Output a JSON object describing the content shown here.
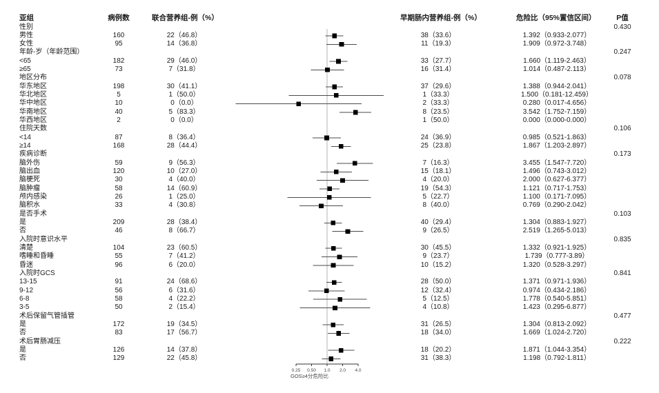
{
  "columns": {
    "subgroup": "亚组",
    "n": "病例数",
    "combined": "联合营养组-例（%）",
    "early": "早期肠内营养组-例（%）",
    "hr": "危险比（95%置信区间）",
    "p": "P值"
  },
  "colors": {
    "text": "#1a1a1a",
    "marker": "#000000",
    "ci_line": "#4a4a4a",
    "ref_line": "#b5b5b5",
    "axis": "#333333",
    "tick_text": "#444444"
  },
  "chart_data": {
    "type": "forest",
    "xscale": "log2",
    "axis": {
      "tick_values": [
        0.25,
        0.5,
        1.0,
        2.0,
        4.0
      ],
      "tick_labels": [
        "0.25",
        "0.50",
        "1.0",
        "2.0",
        "4.0"
      ],
      "label": "GOS≥4分危险比",
      "ref": 1.0
    },
    "rows": [
      {
        "type": "group",
        "label": "性别",
        "p": "0.430"
      },
      {
        "type": "item",
        "label": "男性",
        "n": "160",
        "combined": "22（46.8）",
        "early": "38（33.6）",
        "hr_label": "1.392（0.933-2.077）",
        "hr": 1.392,
        "ci": [
          0.933,
          2.077
        ]
      },
      {
        "type": "item",
        "label": "女性",
        "n": "95",
        "combined": "14（36.8）",
        "early": "11（19.3）",
        "hr_label": "1.909（0.972-3.748）",
        "hr": 1.909,
        "ci": [
          0.972,
          3.748
        ]
      },
      {
        "type": "group",
        "label": "年龄-岁（年龄范围）",
        "p": "0.247"
      },
      {
        "type": "item",
        "label": "<65",
        "n": "182",
        "combined": "29（46.0）",
        "early": "33（27.7）",
        "hr_label": "1.660（1.119-2.463）",
        "hr": 1.66,
        "ci": [
          1.119,
          2.463
        ]
      },
      {
        "type": "item",
        "label": "≥65",
        "n": "73",
        "combined": "7（31.8）",
        "early": "16（31.4）",
        "hr_label": "1.014（0.487-2.113）",
        "hr": 1.014,
        "ci": [
          0.487,
          2.113
        ]
      },
      {
        "type": "group",
        "label": "地区分布",
        "p": "0.078"
      },
      {
        "type": "item",
        "label": "华东地区",
        "n": "198",
        "combined": "30（41.1）",
        "early": "37（29.6）",
        "hr_label": "1.388（0.944-2.041）",
        "hr": 1.388,
        "ci": [
          0.944,
          2.041
        ]
      },
      {
        "type": "item",
        "label": "华北地区",
        "n": "5",
        "combined": "1（50.0）",
        "early": "1（33.3）",
        "hr_label": "1.500（0.181-12.459）",
        "hr": 1.5,
        "ci": [
          0.181,
          12.459
        ]
      },
      {
        "type": "item",
        "label": "华中地区",
        "n": "10",
        "combined": "0（0.0）",
        "early": "2（33.3）",
        "hr_label": "0.280（0.017-4.656）",
        "hr": 0.28,
        "ci": [
          0.017,
          4.656
        ]
      },
      {
        "type": "item",
        "label": "华南地区",
        "n": "40",
        "combined": "5（83.3）",
        "early": "8（23.5）",
        "hr_label": "3.542（1.752-7.159）",
        "hr": 3.542,
        "ci": [
          1.752,
          7.159
        ]
      },
      {
        "type": "item",
        "label": "华西地区",
        "n": "2",
        "combined": "0（0.0）",
        "early": "1（50.0）",
        "hr_label": "0.000（0.000-0.000）",
        "hr": 0,
        "ci": [
          0,
          0
        ]
      },
      {
        "type": "group",
        "label": "住院天数",
        "p": "0.106"
      },
      {
        "type": "item",
        "label": "<14",
        "n": "87",
        "combined": "8（36.4）",
        "early": "24（36.9）",
        "hr_label": "0.985（0.521-1.863）",
        "hr": 0.985,
        "ci": [
          0.521,
          1.863
        ]
      },
      {
        "type": "item",
        "label": "≥14",
        "n": "168",
        "combined": "28（44.4）",
        "early": "25（23.8）",
        "hr_label": "1.867（1.203-2.897）",
        "hr": 1.867,
        "ci": [
          1.203,
          2.897
        ]
      },
      {
        "type": "group",
        "label": "疾病诊断",
        "p": "0.173"
      },
      {
        "type": "item",
        "label": "脑外伤",
        "n": "59",
        "combined": "9（56.3）",
        "early": "7（16.3）",
        "hr_label": "3.455（1.547-7.720）",
        "hr": 3.455,
        "ci": [
          1.547,
          7.72
        ]
      },
      {
        "type": "item",
        "label": "脑出血",
        "n": "120",
        "combined": "10（27.0）",
        "early": "15（18.1）",
        "hr_label": "1.496（0.743-3.012）",
        "hr": 1.496,
        "ci": [
          0.743,
          3.012
        ]
      },
      {
        "type": "item",
        "label": "脑梗死",
        "n": "30",
        "combined": "4（40.0）",
        "early": "4（20.0）",
        "hr_label": "2.000（0.627-6.377）",
        "hr": 2.0,
        "ci": [
          0.627,
          6.377
        ]
      },
      {
        "type": "item",
        "label": "脑肿瘤",
        "n": "58",
        "combined": "14（60.9）",
        "early": "19（54.3）",
        "hr_label": "1.121（0.717-1.753）",
        "hr": 1.121,
        "ci": [
          0.717,
          1.753
        ]
      },
      {
        "type": "item",
        "label": "颅内感染",
        "n": "26",
        "combined": "1（25.0）",
        "early": "5（22.7）",
        "hr_label": "1.100（0.171-7.095）",
        "hr": 1.1,
        "ci": [
          0.171,
          7.095
        ]
      },
      {
        "type": "item",
        "label": "脑积水",
        "n": "33",
        "combined": "4（30.8）",
        "early": "8（40.0）",
        "hr_label": "0.769（0.290-2.042）",
        "hr": 0.769,
        "ci": [
          0.29,
          2.042
        ]
      },
      {
        "type": "group",
        "label": "是否手术",
        "p": "0.103"
      },
      {
        "type": "item",
        "label": "是",
        "n": "209",
        "combined": "28（38.4）",
        "early": "40（29.4）",
        "hr_label": "1.304（0.883-1.927）",
        "hr": 1.304,
        "ci": [
          0.883,
          1.927
        ]
      },
      {
        "type": "item",
        "label": "否",
        "n": "46",
        "combined": "8（66.7）",
        "early": "9（26.5）",
        "hr_label": "2.519（1.265-5.013）",
        "hr": 2.519,
        "ci": [
          1.265,
          5.013
        ]
      },
      {
        "type": "group",
        "label": "入院时意识水平",
        "p": "0.835"
      },
      {
        "type": "item",
        "label": "清楚",
        "n": "104",
        "combined": "23（60.5）",
        "early": "30（45.5）",
        "hr_label": "1.332（0.921-1.925）",
        "hr": 1.332,
        "ci": [
          0.921,
          1.925
        ]
      },
      {
        "type": "item",
        "label": "嗜睡和昏睡",
        "n": "55",
        "combined": "7（41.2）",
        "early": "9（23.7）",
        "hr_label": "1.739（0.777-3.89）",
        "hr": 1.739,
        "ci": [
          0.777,
          3.89
        ]
      },
      {
        "type": "item",
        "label": "昏迷",
        "n": "96",
        "combined": "6（20.0）",
        "early": "10（15.2）",
        "hr_label": "1.320（0.528-3.297）",
        "hr": 1.32,
        "ci": [
          0.528,
          3.297
        ]
      },
      {
        "type": "group",
        "label": "入院时GCS",
        "p": "0.841"
      },
      {
        "type": "item",
        "label": "13-15",
        "n": "91",
        "combined": "24（68.6）",
        "early": "28（50.0）",
        "hr_label": "1.371（0.971-1.936）",
        "hr": 1.371,
        "ci": [
          0.971,
          1.936
        ]
      },
      {
        "type": "item",
        "label": "9-12",
        "n": "56",
        "combined": "6（31.6）",
        "early": "12（32.4）",
        "hr_label": "0.974（0.434-2.186）",
        "hr": 0.974,
        "ci": [
          0.434,
          2.186
        ]
      },
      {
        "type": "item",
        "label": "6-8",
        "n": "58",
        "combined": "4（22.2）",
        "early": "5（12.5）",
        "hr_label": "1.778（0.540-5.851）",
        "hr": 1.778,
        "ci": [
          0.54,
          5.851
        ]
      },
      {
        "type": "item",
        "label": "3-5",
        "n": "50",
        "combined": "2（15.4）",
        "early": "4（10.8）",
        "hr_label": "1.423（0.295-6.877）",
        "hr": 1.423,
        "ci": [
          0.295,
          6.877
        ]
      },
      {
        "type": "group",
        "label": "术后保留气管插管",
        "p": "0.477"
      },
      {
        "type": "item",
        "label": "是",
        "n": "172",
        "combined": "19（34.5）",
        "early": "31（26.5）",
        "hr_label": "1.304（0.813-2.092）",
        "hr": 1.304,
        "ci": [
          0.813,
          2.092
        ]
      },
      {
        "type": "item",
        "label": "否",
        "n": "83",
        "combined": "17（56.7）",
        "early": "18（34.0）",
        "hr_label": "1.669（1.024-2.720）",
        "hr": 1.669,
        "ci": [
          1.024,
          2.72
        ]
      },
      {
        "type": "group",
        "label": "术后胃肠减压",
        "p": "0.222"
      },
      {
        "type": "item",
        "label": "是",
        "n": "126",
        "combined": "14（37.8）",
        "early": "18（20.2）",
        "hr_label": "1.871（1.044-3.354）",
        "hr": 1.871,
        "ci": [
          1.044,
          3.354
        ]
      },
      {
        "type": "item",
        "label": "否",
        "n": "129",
        "combined": "22（45.8）",
        "early": "31（38.3）",
        "hr_label": "1.198（0.792-1.811）",
        "hr": 1.198,
        "ci": [
          0.792,
          1.811
        ]
      }
    ]
  }
}
